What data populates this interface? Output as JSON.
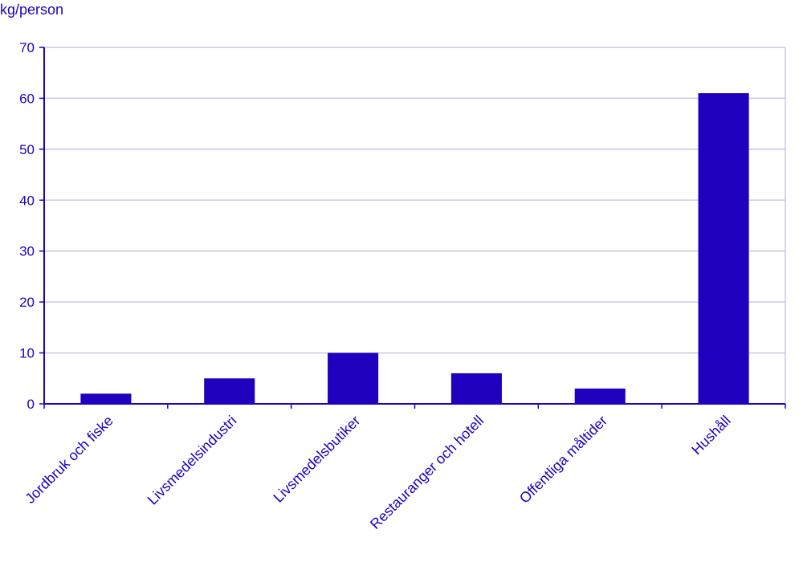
{
  "chart_data": {
    "type": "bar",
    "ylabel": "kg/person",
    "categories": [
      "Jordbruk och fiske",
      "Livsmedelsindustri",
      "Livsmedelsbutiker",
      "Restauranger och hotell",
      "Offentliga måltider",
      "Hushåll"
    ],
    "values": [
      2,
      5,
      10,
      6,
      3,
      61
    ],
    "ylim": [
      0,
      70
    ],
    "yticks": [
      "0",
      "10",
      "20",
      "30",
      "40",
      "50",
      "60",
      "70"
    ],
    "grid": true,
    "colors": {
      "bar": "#1e00be",
      "axis": "#1e00be",
      "grid": "#c8c8e6",
      "text": "#1e00be"
    }
  }
}
